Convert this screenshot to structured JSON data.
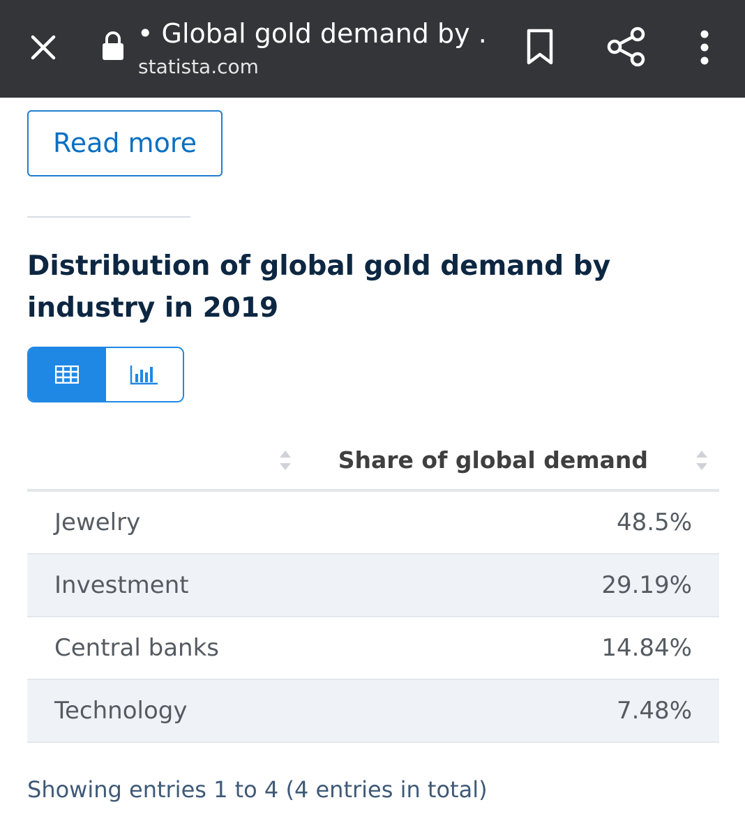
{
  "browser": {
    "tab_title": "• Global gold demand by ...",
    "url": "statista.com",
    "icons": [
      "close-icon",
      "lock-icon",
      "bookmark-icon",
      "share-icon",
      "more-vert-icon"
    ]
  },
  "page": {
    "read_more_label": "Read more",
    "statistic_title": "Distribution of global gold demand by industry in 2019",
    "view_toggle": {
      "selected": "table",
      "options": [
        "table-icon",
        "bar-chart-icon"
      ],
      "accent_color": "#1f88e5"
    },
    "table": {
      "headers": [
        "",
        "Share of global demand"
      ],
      "rows": [
        {
          "label": "Jewelry",
          "value": "48.5%"
        },
        {
          "label": "Investment",
          "value": "29.19%"
        },
        {
          "label": "Central banks",
          "value": "14.84%"
        },
        {
          "label": "Technology",
          "value": "7.48%"
        }
      ]
    },
    "entries_info": "Showing entries 1 to 4 (4 entries in total)"
  },
  "colors": {
    "topbar_bg": "#333538",
    "title_text": "#0d2742",
    "link_blue": "#0a6fc2",
    "stripe_row": "#eff3f8"
  }
}
